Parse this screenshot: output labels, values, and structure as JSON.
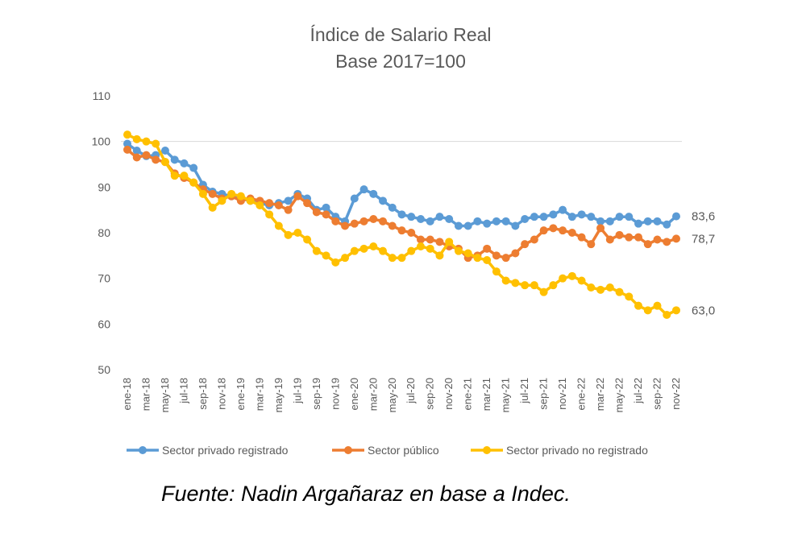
{
  "source_note": "Fuente: Nadin Argañaraz en base a Indec.",
  "chart_data": {
    "type": "line",
    "title": "Índice de Salario Real",
    "subtitle": "Base 2017=100",
    "xlabel": "",
    "ylabel": "",
    "ylim": [
      50,
      110
    ],
    "yticks": [
      50,
      60,
      70,
      80,
      90,
      100,
      110
    ],
    "grid": "single line at 100",
    "legend_position": "bottom",
    "categories": [
      "ene-18",
      "feb-18",
      "mar-18",
      "abr-18",
      "may-18",
      "jun-18",
      "jul-18",
      "ago-18",
      "sep-18",
      "oct-18",
      "nov-18",
      "dic-18",
      "ene-19",
      "feb-19",
      "mar-19",
      "abr-19",
      "may-19",
      "jun-19",
      "jul-19",
      "ago-19",
      "sep-19",
      "oct-19",
      "nov-19",
      "dic-19",
      "ene-20",
      "feb-20",
      "mar-20",
      "abr-20",
      "may-20",
      "jun-20",
      "jul-20",
      "ago-20",
      "sep-20",
      "oct-20",
      "nov-20",
      "dic-20",
      "ene-21",
      "feb-21",
      "mar-21",
      "abr-21",
      "may-21",
      "jun-21",
      "jul-21",
      "ago-21",
      "sep-21",
      "oct-21",
      "nov-21",
      "dic-21",
      "ene-22",
      "feb-22",
      "mar-22",
      "abr-22",
      "may-22",
      "jun-22",
      "jul-22",
      "ago-22",
      "sep-22",
      "oct-22",
      "nov-22"
    ],
    "tick_labels": [
      "ene-18",
      "mar-18",
      "may-18",
      "jul-18",
      "sep-18",
      "nov-18",
      "ene-19",
      "mar-19",
      "may-19",
      "jul-19",
      "sep-19",
      "nov-19",
      "ene-20",
      "mar-20",
      "may-20",
      "jul-20",
      "sep-20",
      "nov-20",
      "ene-21",
      "mar-21",
      "may-21",
      "jul-21",
      "sep-21",
      "nov-21",
      "ene-22",
      "mar-22",
      "may-22",
      "jul-22",
      "sep-22",
      "nov-22"
    ],
    "series": [
      {
        "name": "Sector privado registrado",
        "color": "#5b9bd5",
        "end_label": "83,6",
        "values": [
          99.5,
          98.0,
          96.8,
          97.0,
          98.0,
          96.0,
          95.2,
          94.2,
          90.5,
          89.0,
          88.5,
          88.0,
          87.5,
          87.0,
          86.5,
          86.0,
          86.5,
          87.0,
          88.5,
          87.5,
          85.0,
          85.5,
          83.5,
          82.5,
          87.5,
          89.5,
          88.5,
          87.0,
          85.5,
          84.0,
          83.5,
          83.0,
          82.5,
          83.5,
          83.0,
          81.5,
          81.5,
          82.5,
          82.0,
          82.5,
          82.5,
          81.5,
          83.0,
          83.5,
          83.5,
          84.0,
          85.0,
          83.5,
          84.0,
          83.5,
          82.5,
          82.5,
          83.5,
          83.5,
          82.0,
          82.5,
          82.5,
          81.8,
          83.6
        ]
      },
      {
        "name": "Sector público",
        "color": "#ed7d31",
        "end_label": "78,7",
        "values": [
          98.2,
          96.5,
          97.0,
          96.0,
          95.5,
          93.0,
          92.0,
          91.0,
          89.5,
          88.5,
          87.5,
          88.0,
          87.0,
          87.5,
          87.0,
          86.5,
          86.0,
          85.0,
          88.0,
          86.5,
          84.5,
          84.0,
          82.5,
          81.5,
          82.0,
          82.5,
          83.0,
          82.5,
          81.5,
          80.5,
          80.0,
          78.5,
          78.5,
          78.0,
          77.0,
          76.5,
          74.5,
          75.0,
          76.5,
          75.0,
          74.5,
          75.5,
          77.5,
          78.5,
          80.5,
          81.0,
          80.5,
          80.0,
          79.0,
          77.5,
          81.0,
          78.5,
          79.5,
          79.0,
          79.0,
          77.5,
          78.5,
          78.0,
          78.7
        ]
      },
      {
        "name": "Sector privado no registrado",
        "color": "#ffc000",
        "end_label": "63,0",
        "values": [
          101.5,
          100.5,
          100.0,
          99.5,
          95.5,
          92.5,
          92.5,
          91.0,
          88.5,
          85.5,
          87.0,
          88.5,
          88.0,
          87.0,
          86.0,
          84.0,
          81.5,
          79.5,
          80.0,
          78.5,
          76.0,
          75.0,
          73.5,
          74.5,
          76.0,
          76.5,
          77.0,
          76.0,
          74.5,
          74.5,
          76.0,
          77.0,
          76.5,
          75.0,
          78.0,
          76.0,
          75.5,
          74.5,
          74.0,
          71.5,
          69.5,
          69.0,
          68.5,
          68.5,
          67.0,
          68.5,
          70.0,
          70.5,
          69.5,
          68.0,
          67.5,
          68.0,
          67.0,
          66.0,
          64.0,
          63.0,
          64.0,
          62.0,
          63.0
        ]
      }
    ]
  }
}
